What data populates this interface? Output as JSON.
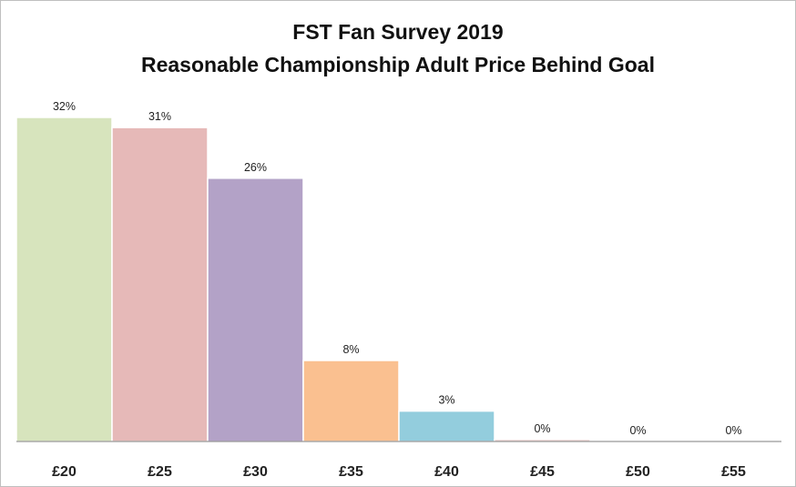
{
  "chart_data": {
    "type": "bar",
    "title": "FST Fan Survey 2019",
    "subtitle": "Reasonable Championship Adult Price Behind Goal",
    "categories": [
      "£20",
      "£25",
      "£30",
      "£35",
      "£40",
      "£45",
      "£50",
      "£55"
    ],
    "values": [
      32,
      31,
      26,
      8,
      3,
      0.2,
      0,
      0
    ],
    "data_labels": [
      "32%",
      "31%",
      "26%",
      "8%",
      "3%",
      "0%",
      "0%",
      "0%"
    ],
    "bar_colors": [
      "#d7e4bd",
      "#e6b9b8",
      "#b3a2c7",
      "#fac090",
      "#93cddd",
      "#e6b9b8",
      "#d7e4bd",
      "#d7e4bd"
    ],
    "ylim": [
      0,
      32
    ],
    "grid": false,
    "legend": false
  }
}
